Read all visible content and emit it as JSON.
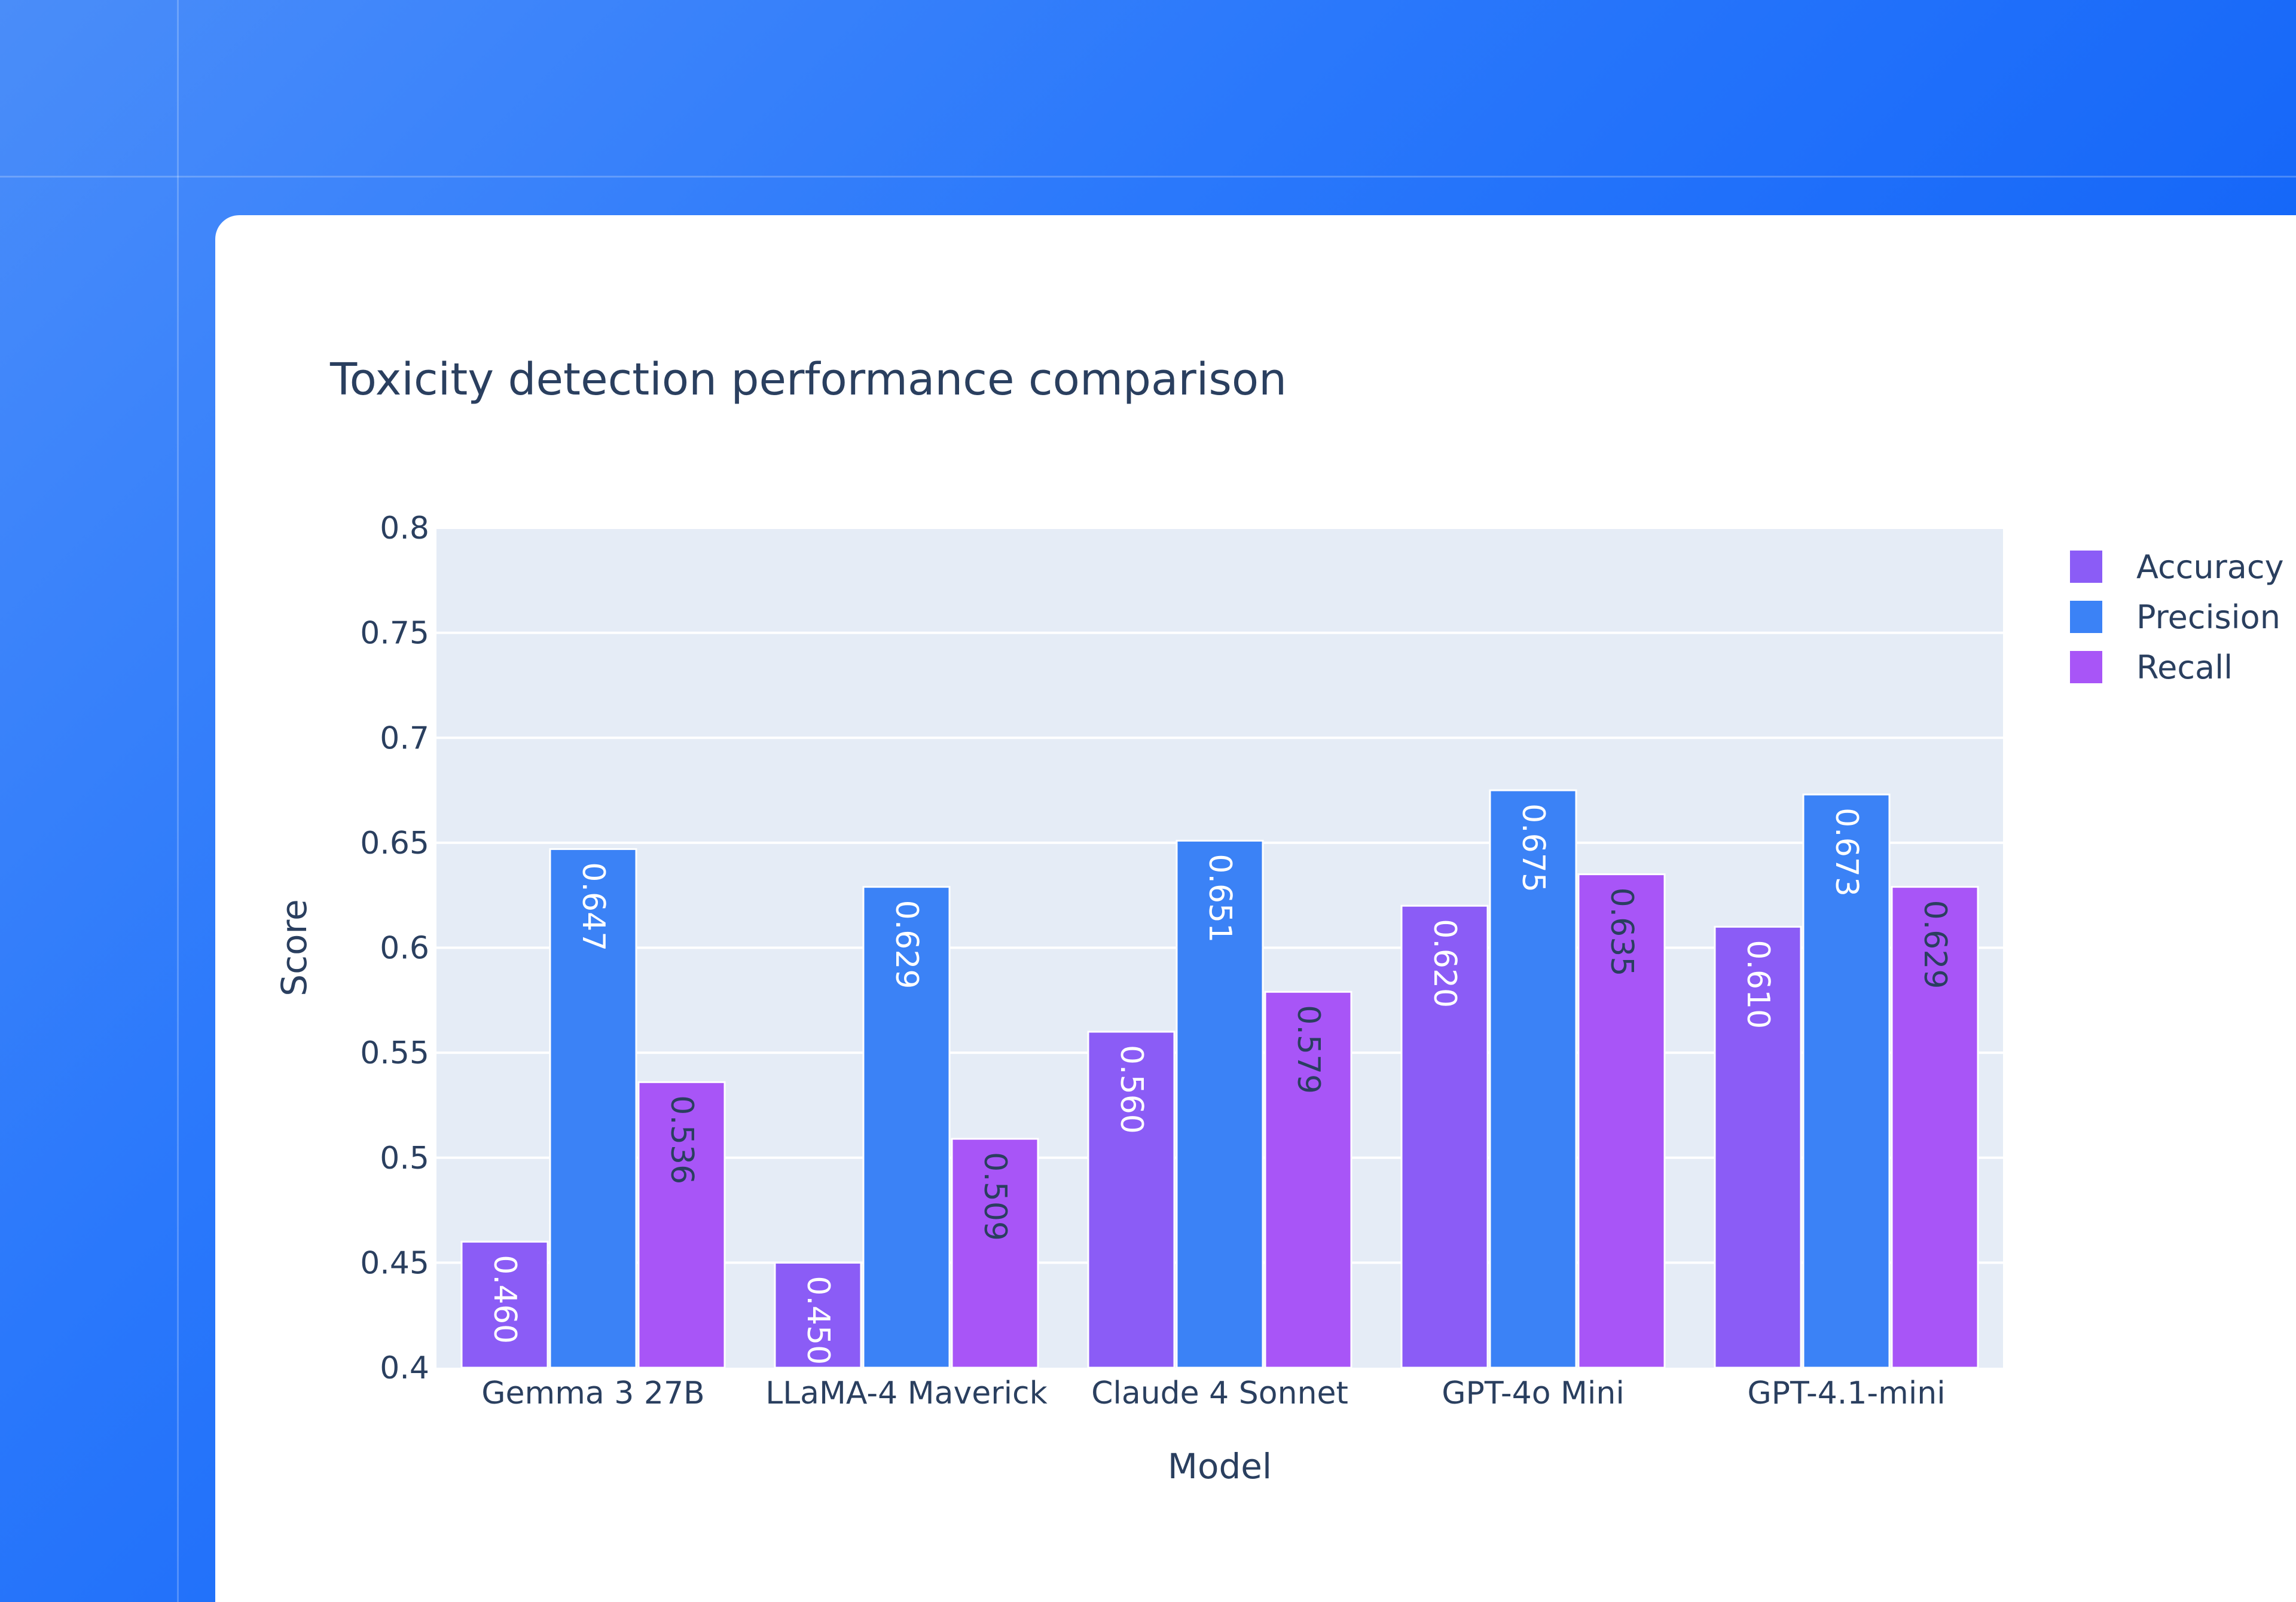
{
  "chart_data": {
    "type": "bar",
    "title": "Toxicity detection performance comparison",
    "xlabel": "Model",
    "ylabel": "Score",
    "ylim": [
      0.4,
      0.8
    ],
    "yticks": [
      0.4,
      0.45,
      0.5,
      0.55,
      0.6,
      0.65,
      0.7,
      0.75,
      0.8
    ],
    "ytick_labels": [
      "0.4",
      "0.45",
      "0.5",
      "0.55",
      "0.6",
      "0.65",
      "0.7",
      "0.75",
      "0.8"
    ],
    "grid": true,
    "legend_position": "top-right, outside plot",
    "categories": [
      "Gemma 3 27B",
      "LLaMA-4 Maverick",
      "Claude 4 Sonnet",
      "GPT-4o Mini",
      "GPT-4.1-mini"
    ],
    "series": [
      {
        "name": "Accuracy",
        "color": "#8b5cf6",
        "label_color": "#ffffff",
        "values": [
          0.46,
          0.45,
          0.56,
          0.62,
          0.61
        ],
        "labels": [
          "0.460",
          "0.450",
          "0.560",
          "0.620",
          "0.610"
        ]
      },
      {
        "name": "Precision",
        "color": "#3b82f6",
        "label_color": "#ffffff",
        "values": [
          0.647,
          0.629,
          0.651,
          0.675,
          0.673
        ],
        "labels": [
          "0.647",
          "0.629",
          "0.651",
          "0.675",
          "0.673"
        ]
      },
      {
        "name": "Recall",
        "color": "#a855f7",
        "label_color": "#2a3f5f",
        "values": [
          0.536,
          0.509,
          0.579,
          0.635,
          0.629
        ],
        "labels": [
          "0.536",
          "0.509",
          "0.579",
          "0.635",
          "0.629"
        ]
      }
    ],
    "plot_background": "#e5ecf6",
    "gridline_color": "#ffffff"
  }
}
